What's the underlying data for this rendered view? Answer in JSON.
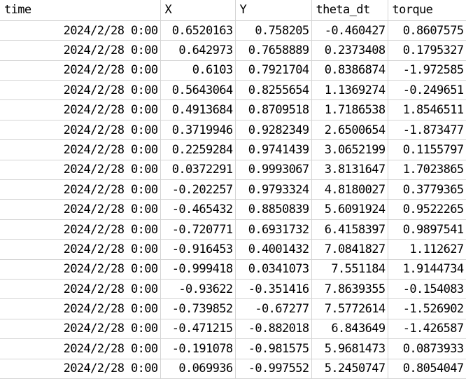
{
  "sheet": {
    "headers": [
      "time",
      "X",
      "Y",
      "theta_dt",
      "torque"
    ],
    "rows": [
      [
        "2024/2/28  0:00",
        "0.6520163",
        "0.758205",
        "-0.460427",
        "0.8607575"
      ],
      [
        "2024/2/28  0:00",
        "0.642973",
        "0.7658889",
        "0.2373408",
        "0.1795327"
      ],
      [
        "2024/2/28  0:00",
        "0.6103",
        "0.7921704",
        "0.8386874",
        "-1.972585"
      ],
      [
        "2024/2/28  0:00",
        "0.5643064",
        "0.8255654",
        "1.1369274",
        "-0.249651"
      ],
      [
        "2024/2/28  0:00",
        "0.4913684",
        "0.8709518",
        "1.7186538",
        "1.8546511"
      ],
      [
        "2024/2/28  0:00",
        "0.3719946",
        "0.9282349",
        "2.6500654",
        "-1.873477"
      ],
      [
        "2024/2/28  0:00",
        "0.2259284",
        "0.9741439",
        "3.0652199",
        "0.1155797"
      ],
      [
        "2024/2/28  0:00",
        "0.0372291",
        "0.9993067",
        "3.8131647",
        "1.7023865"
      ],
      [
        "2024/2/28  0:00",
        "-0.202257",
        "0.9793324",
        "4.8180027",
        "0.3779365"
      ],
      [
        "2024/2/28  0:00",
        "-0.465432",
        "0.8850839",
        "5.6091924",
        "0.9522265"
      ],
      [
        "2024/2/28  0:00",
        "-0.720771",
        "0.6931732",
        "6.4158397",
        "0.9897541"
      ],
      [
        "2024/2/28  0:00",
        "-0.916453",
        "0.4001432",
        "7.0841827",
        "1.112627"
      ],
      [
        "2024/2/28  0:00",
        "-0.999418",
        "0.0341073",
        "7.551184",
        "1.9144734"
      ],
      [
        "2024/2/28  0:00",
        "-0.93622",
        "-0.351416",
        "7.8639355",
        "-0.154083"
      ],
      [
        "2024/2/28  0:00",
        "-0.739852",
        "-0.67277",
        "7.5772614",
        "-1.526902"
      ],
      [
        "2024/2/28  0:00",
        "-0.471215",
        "-0.882018",
        "6.843649",
        "-1.426587"
      ],
      [
        "2024/2/28  0:00",
        "-0.191078",
        "-0.981575",
        "5.9681473",
        "0.0873933"
      ],
      [
        "2024/2/28  0:00",
        "0.069936",
        "-0.997552",
        "5.2450747",
        "0.8054047"
      ]
    ]
  }
}
